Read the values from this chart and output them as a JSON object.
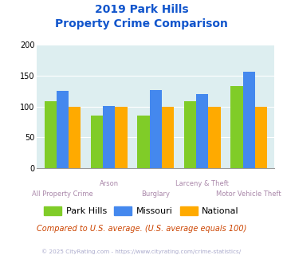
{
  "title_line1": "2019 Park Hills",
  "title_line2": "Property Crime Comparison",
  "categories": [
    "All Property Crime",
    "Arson",
    "Burglary",
    "Larceny & Theft",
    "Motor Vehicle Theft"
  ],
  "park_hills": [
    108,
    86,
    86,
    108,
    133
  ],
  "missouri": [
    125,
    101,
    127,
    120,
    156
  ],
  "national": [
    100,
    100,
    100,
    100,
    100
  ],
  "bar_colors": {
    "park_hills": "#80cc28",
    "missouri": "#4488ee",
    "national": "#ffaa00"
  },
  "ylim": [
    0,
    200
  ],
  "yticks": [
    0,
    50,
    100,
    150,
    200
  ],
  "xlabel_color": "#aa88aa",
  "title_color": "#1155cc",
  "plot_bg": "#ddeef0",
  "footer_text": "© 2025 CityRating.com - https://www.cityrating.com/crime-statistics/",
  "compare_text": "Compared to U.S. average. (U.S. average equals 100)",
  "legend_labels": [
    "Park Hills",
    "Missouri",
    "National"
  ]
}
